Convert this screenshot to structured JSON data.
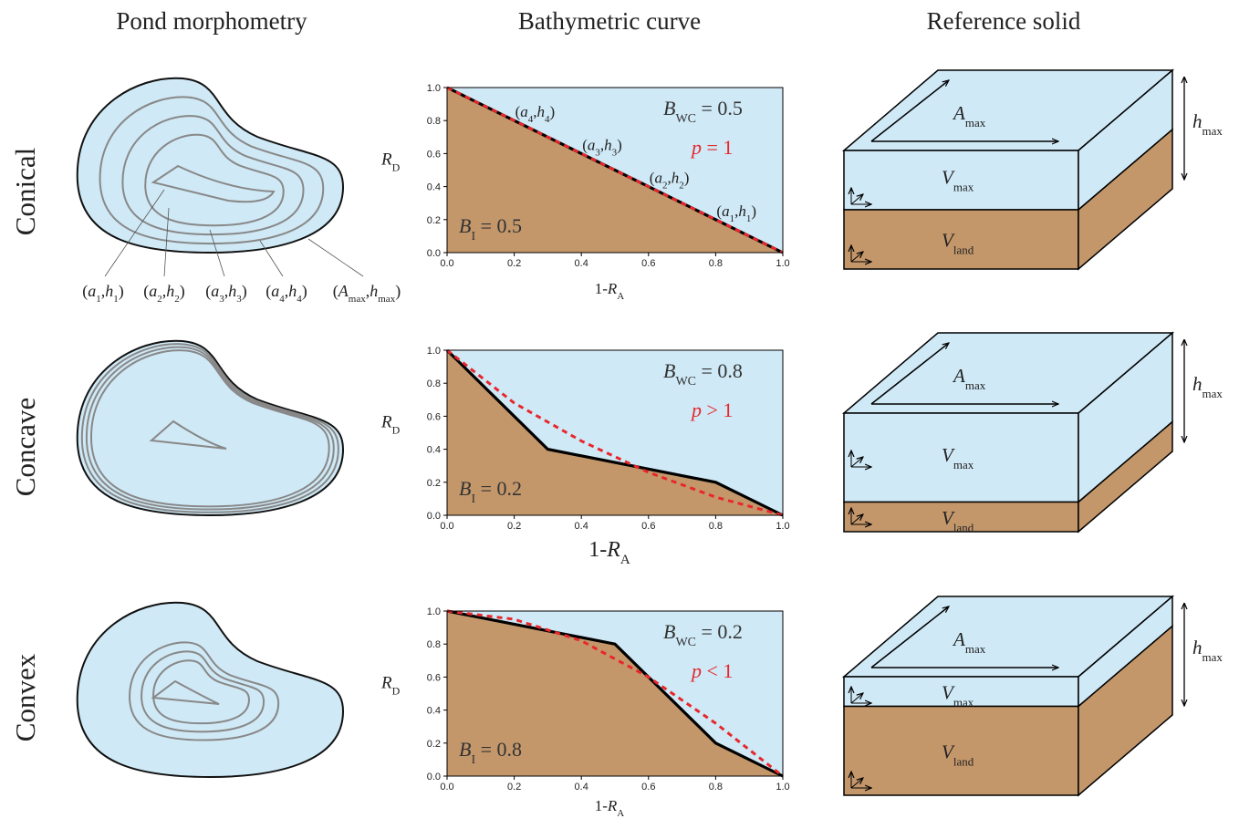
{
  "columns": [
    "Pond morphometry",
    "Bathymetric curve",
    "Reference solid"
  ],
  "rows": [
    "Conical",
    "Concave",
    "Convex"
  ],
  "pond_labels": [
    [
      [
        "(",
        "n"
      ],
      [
        "a",
        "i"
      ],
      [
        "1",
        "s"
      ],
      [
        ",",
        "n"
      ],
      [
        "h",
        "i"
      ],
      [
        "1",
        "s"
      ],
      [
        ")",
        "n"
      ]
    ],
    [
      [
        "(",
        "n"
      ],
      [
        "a",
        "i"
      ],
      [
        "2",
        "s"
      ],
      [
        ",",
        "n"
      ],
      [
        "h",
        "i"
      ],
      [
        "2",
        "s"
      ],
      [
        ")",
        "n"
      ]
    ],
    [
      [
        "(",
        "n"
      ],
      [
        "a",
        "i"
      ],
      [
        "3",
        "s"
      ],
      [
        ",",
        "n"
      ],
      [
        "h",
        "i"
      ],
      [
        "3",
        "s"
      ],
      [
        ")",
        "n"
      ]
    ],
    [
      [
        "(",
        "n"
      ],
      [
        "a",
        "i"
      ],
      [
        "4",
        "s"
      ],
      [
        ",",
        "n"
      ],
      [
        "h",
        "i"
      ],
      [
        "4",
        "s"
      ],
      [
        ")",
        "n"
      ]
    ],
    [
      [
        "(",
        "n"
      ],
      [
        "A",
        "i"
      ],
      [
        "max",
        "s"
      ],
      [
        ",",
        "n"
      ],
      [
        "h",
        "i"
      ],
      [
        "max",
        "s"
      ],
      [
        ")",
        "n"
      ]
    ]
  ],
  "solid_labels": {
    "area": [
      [
        "A",
        "i"
      ],
      [
        "max",
        "s"
      ]
    ],
    "water": [
      [
        "V",
        "i"
      ],
      [
        "max",
        "s"
      ]
    ],
    "land": [
      [
        "V",
        "i"
      ],
      [
        "land",
        "s"
      ]
    ],
    "height": [
      [
        "h",
        "i"
      ],
      [
        "max",
        "s"
      ]
    ]
  },
  "chart_data": [
    {
      "type": "line",
      "xlim": [
        0,
        1
      ],
      "ylim": [
        0,
        1
      ],
      "xticks": [
        {
          "value": 0,
          "label": "0.0"
        },
        {
          "value": 0.2,
          "label": "0.2"
        },
        {
          "value": 0.4,
          "label": "0.4"
        },
        {
          "value": 0.6,
          "label": "0.6"
        },
        {
          "value": 0.8,
          "label": "0.8"
        },
        {
          "value": 1,
          "label": "1.0"
        }
      ],
      "yticks": [
        {
          "value": 0,
          "label": "0.0"
        },
        {
          "value": 0.2,
          "label": "0.2"
        },
        {
          "value": 0.4,
          "label": "0.4"
        },
        {
          "value": 0.6,
          "label": "0.6"
        },
        {
          "value": 0.8,
          "label": "0.8"
        },
        {
          "value": 1,
          "label": "1.0"
        }
      ],
      "xlabel": [
        [
          "1-",
          "n"
        ],
        [
          "R",
          "i"
        ],
        [
          "A",
          "s"
        ]
      ],
      "ylabel": [
        [
          "R",
          "i"
        ],
        [
          "D",
          "s"
        ]
      ],
      "background": "#cfe9f6",
      "fill": "#c4976b",
      "series": [
        {
          "color": "#000000",
          "dash": false,
          "x": [
            0,
            0.2,
            0.4,
            0.6,
            0.8,
            1
          ],
          "values": [
            1,
            0.8,
            0.6,
            0.4,
            0.2,
            0
          ],
          "point_labels": [
            null,
            [
              [
                "(",
                "n"
              ],
              [
                "a",
                "i"
              ],
              [
                "4",
                "s"
              ],
              [
                ",",
                "n"
              ],
              [
                "h",
                "i"
              ],
              [
                "4",
                "s"
              ],
              [
                ")",
                "n"
              ]
            ],
            [
              [
                "(",
                "n"
              ],
              [
                "a",
                "i"
              ],
              [
                "3",
                "s"
              ],
              [
                ",",
                "n"
              ],
              [
                "h",
                "i"
              ],
              [
                "3",
                "s"
              ],
              [
                ")",
                "n"
              ]
            ],
            [
              [
                "(",
                "n"
              ],
              [
                "a",
                "i"
              ],
              [
                "2",
                "s"
              ],
              [
                ",",
                "n"
              ],
              [
                "h",
                "i"
              ],
              [
                "2",
                "s"
              ],
              [
                ")",
                "n"
              ]
            ],
            [
              [
                "(",
                "n"
              ],
              [
                "a",
                "i"
              ],
              [
                "1",
                "s"
              ],
              [
                ",",
                "n"
              ],
              [
                "h",
                "i"
              ],
              [
                "1",
                "s"
              ],
              [
                ")",
                "n"
              ]
            ],
            null
          ]
        },
        {
          "color": "#e8262b",
          "dash": true,
          "x": [
            0,
            1
          ],
          "values": [
            1,
            0
          ]
        }
      ],
      "annotations": [
        {
          "text": [
            [
              "B",
              "i"
            ],
            [
              "WC",
              "s"
            ],
            [
              " = 0.5",
              "n"
            ]
          ],
          "color": "#333333"
        },
        {
          "text": [
            [
              "p",
              "i"
            ],
            [
              " = 1",
              "n"
            ]
          ],
          "color": "#e8262b"
        },
        {
          "text": [
            [
              "B",
              "i"
            ],
            [
              "I",
              "s"
            ],
            [
              " = 0.5",
              "n"
            ]
          ],
          "color": "#333333"
        }
      ]
    },
    {
      "type": "line",
      "xlim": [
        0,
        1
      ],
      "ylim": [
        0,
        1
      ],
      "xticks": [
        {
          "value": 0,
          "label": "0.0"
        },
        {
          "value": 0.2,
          "label": "0.2"
        },
        {
          "value": 0.4,
          "label": "0.4"
        },
        {
          "value": 0.6,
          "label": "0.6"
        },
        {
          "value": 0.8,
          "label": "0.8"
        },
        {
          "value": 1,
          "label": "1.0"
        }
      ],
      "yticks": [
        {
          "value": 0,
          "label": "0.0"
        },
        {
          "value": 0.2,
          "label": "0.2"
        },
        {
          "value": 0.4,
          "label": "0.4"
        },
        {
          "value": 0.6,
          "label": "0.6"
        },
        {
          "value": 0.8,
          "label": "0.8"
        },
        {
          "value": 1,
          "label": "1.0"
        }
      ],
      "xlabel": [
        [
          "1-",
          "n"
        ],
        [
          "R",
          "i"
        ],
        [
          "A",
          "s"
        ]
      ],
      "ylabel": [
        [
          "R",
          "i"
        ],
        [
          "D",
          "s"
        ]
      ],
      "background": "#cfe9f6",
      "fill": "#c4976b",
      "series": [
        {
          "color": "#000000",
          "dash": false,
          "x": [
            0,
            0.3,
            0.8,
            1
          ],
          "values": [
            1,
            0.4,
            0.2,
            0
          ]
        },
        {
          "color": "#e8262b",
          "dash": true,
          "x": [
            0,
            0.2,
            0.4,
            0.6,
            0.8,
            1
          ],
          "values": [
            1,
            0.68,
            0.45,
            0.26,
            0.11,
            0
          ]
        }
      ],
      "annotations": [
        {
          "text": [
            [
              "B",
              "i"
            ],
            [
              "WC",
              "s"
            ],
            [
              " = 0.8",
              "n"
            ]
          ],
          "color": "#333333"
        },
        {
          "text": [
            [
              "p",
              "i"
            ],
            [
              " > 1",
              "n"
            ]
          ],
          "color": "#e8262b"
        },
        {
          "text": [
            [
              "B",
              "i"
            ],
            [
              "I",
              "s"
            ],
            [
              " = 0.2",
              "n"
            ]
          ],
          "color": "#333333"
        }
      ]
    },
    {
      "type": "line",
      "xlim": [
        0,
        1
      ],
      "ylim": [
        0,
        1
      ],
      "xticks": [
        {
          "value": 0,
          "label": "0.0"
        },
        {
          "value": 0.2,
          "label": "0.2"
        },
        {
          "value": 0.4,
          "label": "0.4"
        },
        {
          "value": 0.6,
          "label": "0.6"
        },
        {
          "value": 0.8,
          "label": "0.8"
        },
        {
          "value": 1,
          "label": "1.0"
        }
      ],
      "yticks": [
        {
          "value": 0,
          "label": "0.0"
        },
        {
          "value": 0.2,
          "label": "0.2"
        },
        {
          "value": 0.4,
          "label": "0.4"
        },
        {
          "value": 0.6,
          "label": "0.6"
        },
        {
          "value": 0.8,
          "label": "0.8"
        },
        {
          "value": 1,
          "label": "1.0"
        }
      ],
      "xlabel": [
        [
          "1-",
          "n"
        ],
        [
          "R",
          "i"
        ],
        [
          "A",
          "s"
        ]
      ],
      "ylabel": [
        [
          "R",
          "i"
        ],
        [
          "D",
          "s"
        ]
      ],
      "background": "#cfe9f6",
      "fill": "#c4976b",
      "series": [
        {
          "color": "#000000",
          "dash": false,
          "x": [
            0,
            0.5,
            0.8,
            1
          ],
          "values": [
            1,
            0.8,
            0.2,
            0
          ]
        },
        {
          "color": "#e8262b",
          "dash": true,
          "x": [
            0,
            0.2,
            0.4,
            0.6,
            0.8,
            1
          ],
          "values": [
            1,
            0.95,
            0.82,
            0.6,
            0.32,
            0
          ]
        }
      ],
      "annotations": [
        {
          "text": [
            [
              "B",
              "i"
            ],
            [
              "WC",
              "s"
            ],
            [
              " = 0.2",
              "n"
            ]
          ],
          "color": "#333333"
        },
        {
          "text": [
            [
              "p",
              "i"
            ],
            [
              " < 1",
              "n"
            ]
          ],
          "color": "#e8262b"
        },
        {
          "text": [
            [
              "B",
              "i"
            ],
            [
              "I",
              "s"
            ],
            [
              " = 0.8",
              "n"
            ]
          ],
          "color": "#333333"
        }
      ]
    }
  ]
}
